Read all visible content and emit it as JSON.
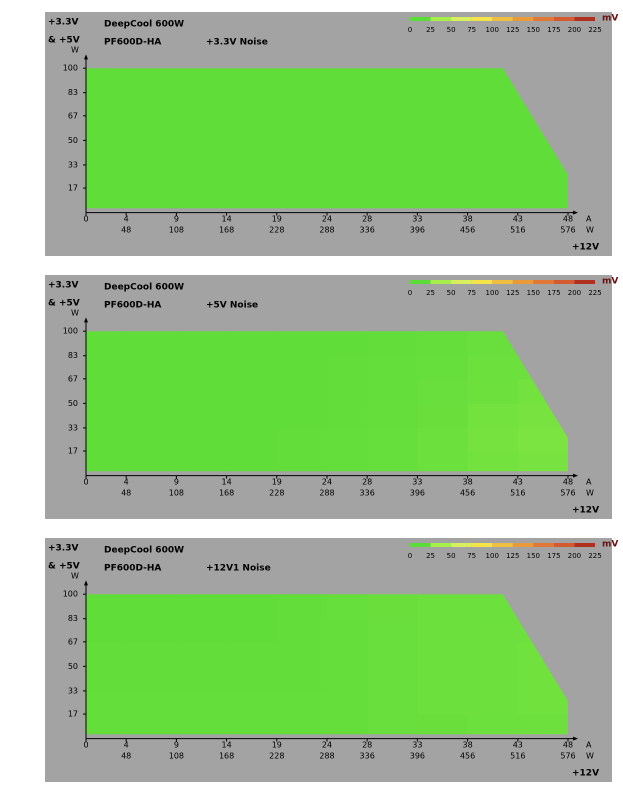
{
  "chart_data": [
    {
      "type": "heatmap",
      "title": "DeepCool 600W",
      "subtitle": "PF600D-HA",
      "noise_label": "+3.3V Noise",
      "ylabel": "+3.3V",
      "ylabel2": "& +5V",
      "yunit": "W",
      "xunit": "A",
      "x2unit": "W",
      "xlabel": "+12V",
      "xlim": [
        0,
        48
      ],
      "ylim": [
        0,
        104
      ],
      "xticks": [
        0,
        4,
        9,
        14,
        19,
        24,
        28,
        33,
        38,
        43,
        48
      ],
      "xwatts": [
        null,
        48,
        108,
        168,
        228,
        288,
        336,
        396,
        456,
        516,
        576
      ],
      "yticks": [
        17,
        33,
        50,
        67,
        83,
        100
      ],
      "y_edges": [
        0,
        17,
        33,
        50,
        67,
        83,
        100
      ],
      "boundary": {
        "x": [
          0,
          0,
          41.5,
          48,
          48
        ],
        "y": [
          3,
          100,
          100,
          26,
          3
        ]
      },
      "values": [
        [
          8,
          8,
          8,
          8,
          8,
          8,
          8,
          8,
          8,
          8
        ],
        [
          8,
          8,
          8,
          8,
          8,
          8,
          8,
          8,
          8,
          8
        ],
        [
          8,
          8,
          8,
          8,
          8,
          8,
          8,
          8,
          8,
          8
        ],
        [
          8,
          8,
          8,
          8,
          8,
          8,
          8,
          8,
          8,
          8
        ],
        [
          8,
          8,
          8,
          8,
          8,
          8,
          8,
          8,
          8,
          8
        ],
        [
          8,
          8,
          8,
          8,
          8,
          8,
          8,
          8,
          8,
          8
        ]
      ],
      "colorscale": {
        "unit": "mV",
        "ticks": [
          0,
          25,
          50,
          75,
          100,
          125,
          150,
          175,
          200,
          225
        ],
        "colors": [
          "#5cdc39",
          "#a6ee4a",
          "#d8f060",
          "#f4e44a",
          "#f0bf40",
          "#eb9a3a",
          "#e07838",
          "#d45a30",
          "#b03020"
        ]
      }
    },
    {
      "type": "heatmap",
      "title": "DeepCool 600W",
      "subtitle": "PF600D-HA",
      "noise_label": "+5V Noise",
      "ylabel": "+3.3V",
      "ylabel2": "& +5V",
      "yunit": "W",
      "xunit": "A",
      "x2unit": "W",
      "xlabel": "+12V",
      "xlim": [
        0,
        48
      ],
      "ylim": [
        0,
        104
      ],
      "xticks": [
        0,
        4,
        9,
        14,
        19,
        24,
        28,
        33,
        38,
        43,
        48
      ],
      "xwatts": [
        null,
        48,
        108,
        168,
        228,
        288,
        336,
        396,
        456,
        516,
        576
      ],
      "yticks": [
        17,
        33,
        50,
        67,
        83,
        100
      ],
      "y_edges": [
        0,
        17,
        33,
        50,
        67,
        83,
        100
      ],
      "boundary": {
        "x": [
          0,
          0,
          41.5,
          48,
          48
        ],
        "y": [
          3,
          100,
          100,
          26,
          3
        ]
      },
      "values": [
        [
          8,
          8,
          8,
          8,
          9,
          10,
          12,
          15,
          18,
          20
        ],
        [
          8,
          8,
          8,
          8,
          9,
          10,
          12,
          15,
          19,
          21
        ],
        [
          8,
          8,
          8,
          8,
          8,
          9,
          11,
          14,
          18,
          20
        ],
        [
          8,
          8,
          8,
          8,
          8,
          9,
          10,
          13,
          16,
          18
        ],
        [
          8,
          8,
          8,
          8,
          8,
          9,
          10,
          12,
          15,
          16
        ],
        [
          8,
          8,
          8,
          8,
          8,
          8,
          9,
          11,
          13,
          14
        ]
      ],
      "colorscale": {
        "unit": "mV",
        "ticks": [
          0,
          25,
          50,
          75,
          100,
          125,
          150,
          175,
          200,
          225
        ],
        "colors": [
          "#5cdc39",
          "#a6ee4a",
          "#d8f060",
          "#f4e44a",
          "#f0bf40",
          "#eb9a3a",
          "#e07838",
          "#d45a30",
          "#b03020"
        ]
      }
    },
    {
      "type": "heatmap",
      "title": "DeepCool 600W",
      "subtitle": "PF600D-HA",
      "noise_label": "+12V1 Noise",
      "ylabel": "+3.3V",
      "ylabel2": "& +5V",
      "yunit": "W",
      "xunit": "A",
      "x2unit": "W",
      "xlabel": "+12V",
      "xlim": [
        0,
        48
      ],
      "ylim": [
        0,
        104
      ],
      "xticks": [
        0,
        4,
        9,
        14,
        19,
        24,
        28,
        33,
        38,
        43,
        48
      ],
      "xwatts": [
        null,
        48,
        108,
        168,
        228,
        288,
        336,
        396,
        456,
        516,
        576
      ],
      "yticks": [
        17,
        33,
        50,
        67,
        83,
        100
      ],
      "y_edges": [
        0,
        17,
        33,
        50,
        67,
        83,
        100
      ],
      "boundary": {
        "x": [
          0,
          0,
          41.5,
          48,
          48
        ],
        "y": [
          3,
          100,
          100,
          26,
          3
        ]
      },
      "values": [
        [
          10,
          10,
          10,
          10,
          10,
          11,
          13,
          14,
          15,
          16
        ],
        [
          10,
          10,
          10,
          10,
          10,
          11,
          13,
          15,
          16,
          17
        ],
        [
          9,
          9,
          9,
          9,
          9,
          11,
          13,
          15,
          16,
          17
        ],
        [
          9,
          9,
          9,
          9,
          9,
          11,
          13,
          15,
          16,
          17
        ],
        [
          8,
          8,
          8,
          8,
          9,
          11,
          13,
          15,
          16,
          16
        ],
        [
          8,
          8,
          8,
          8,
          9,
          12,
          14,
          15,
          15,
          15
        ]
      ],
      "colorscale": {
        "unit": "mV",
        "ticks": [
          0,
          25,
          50,
          75,
          100,
          125,
          150,
          175,
          200,
          225
        ],
        "colors": [
          "#5cdc39",
          "#a6ee4a",
          "#d8f060",
          "#f4e44a",
          "#f0bf40",
          "#eb9a3a",
          "#e07838",
          "#d45a30",
          "#b03020"
        ]
      }
    }
  ]
}
